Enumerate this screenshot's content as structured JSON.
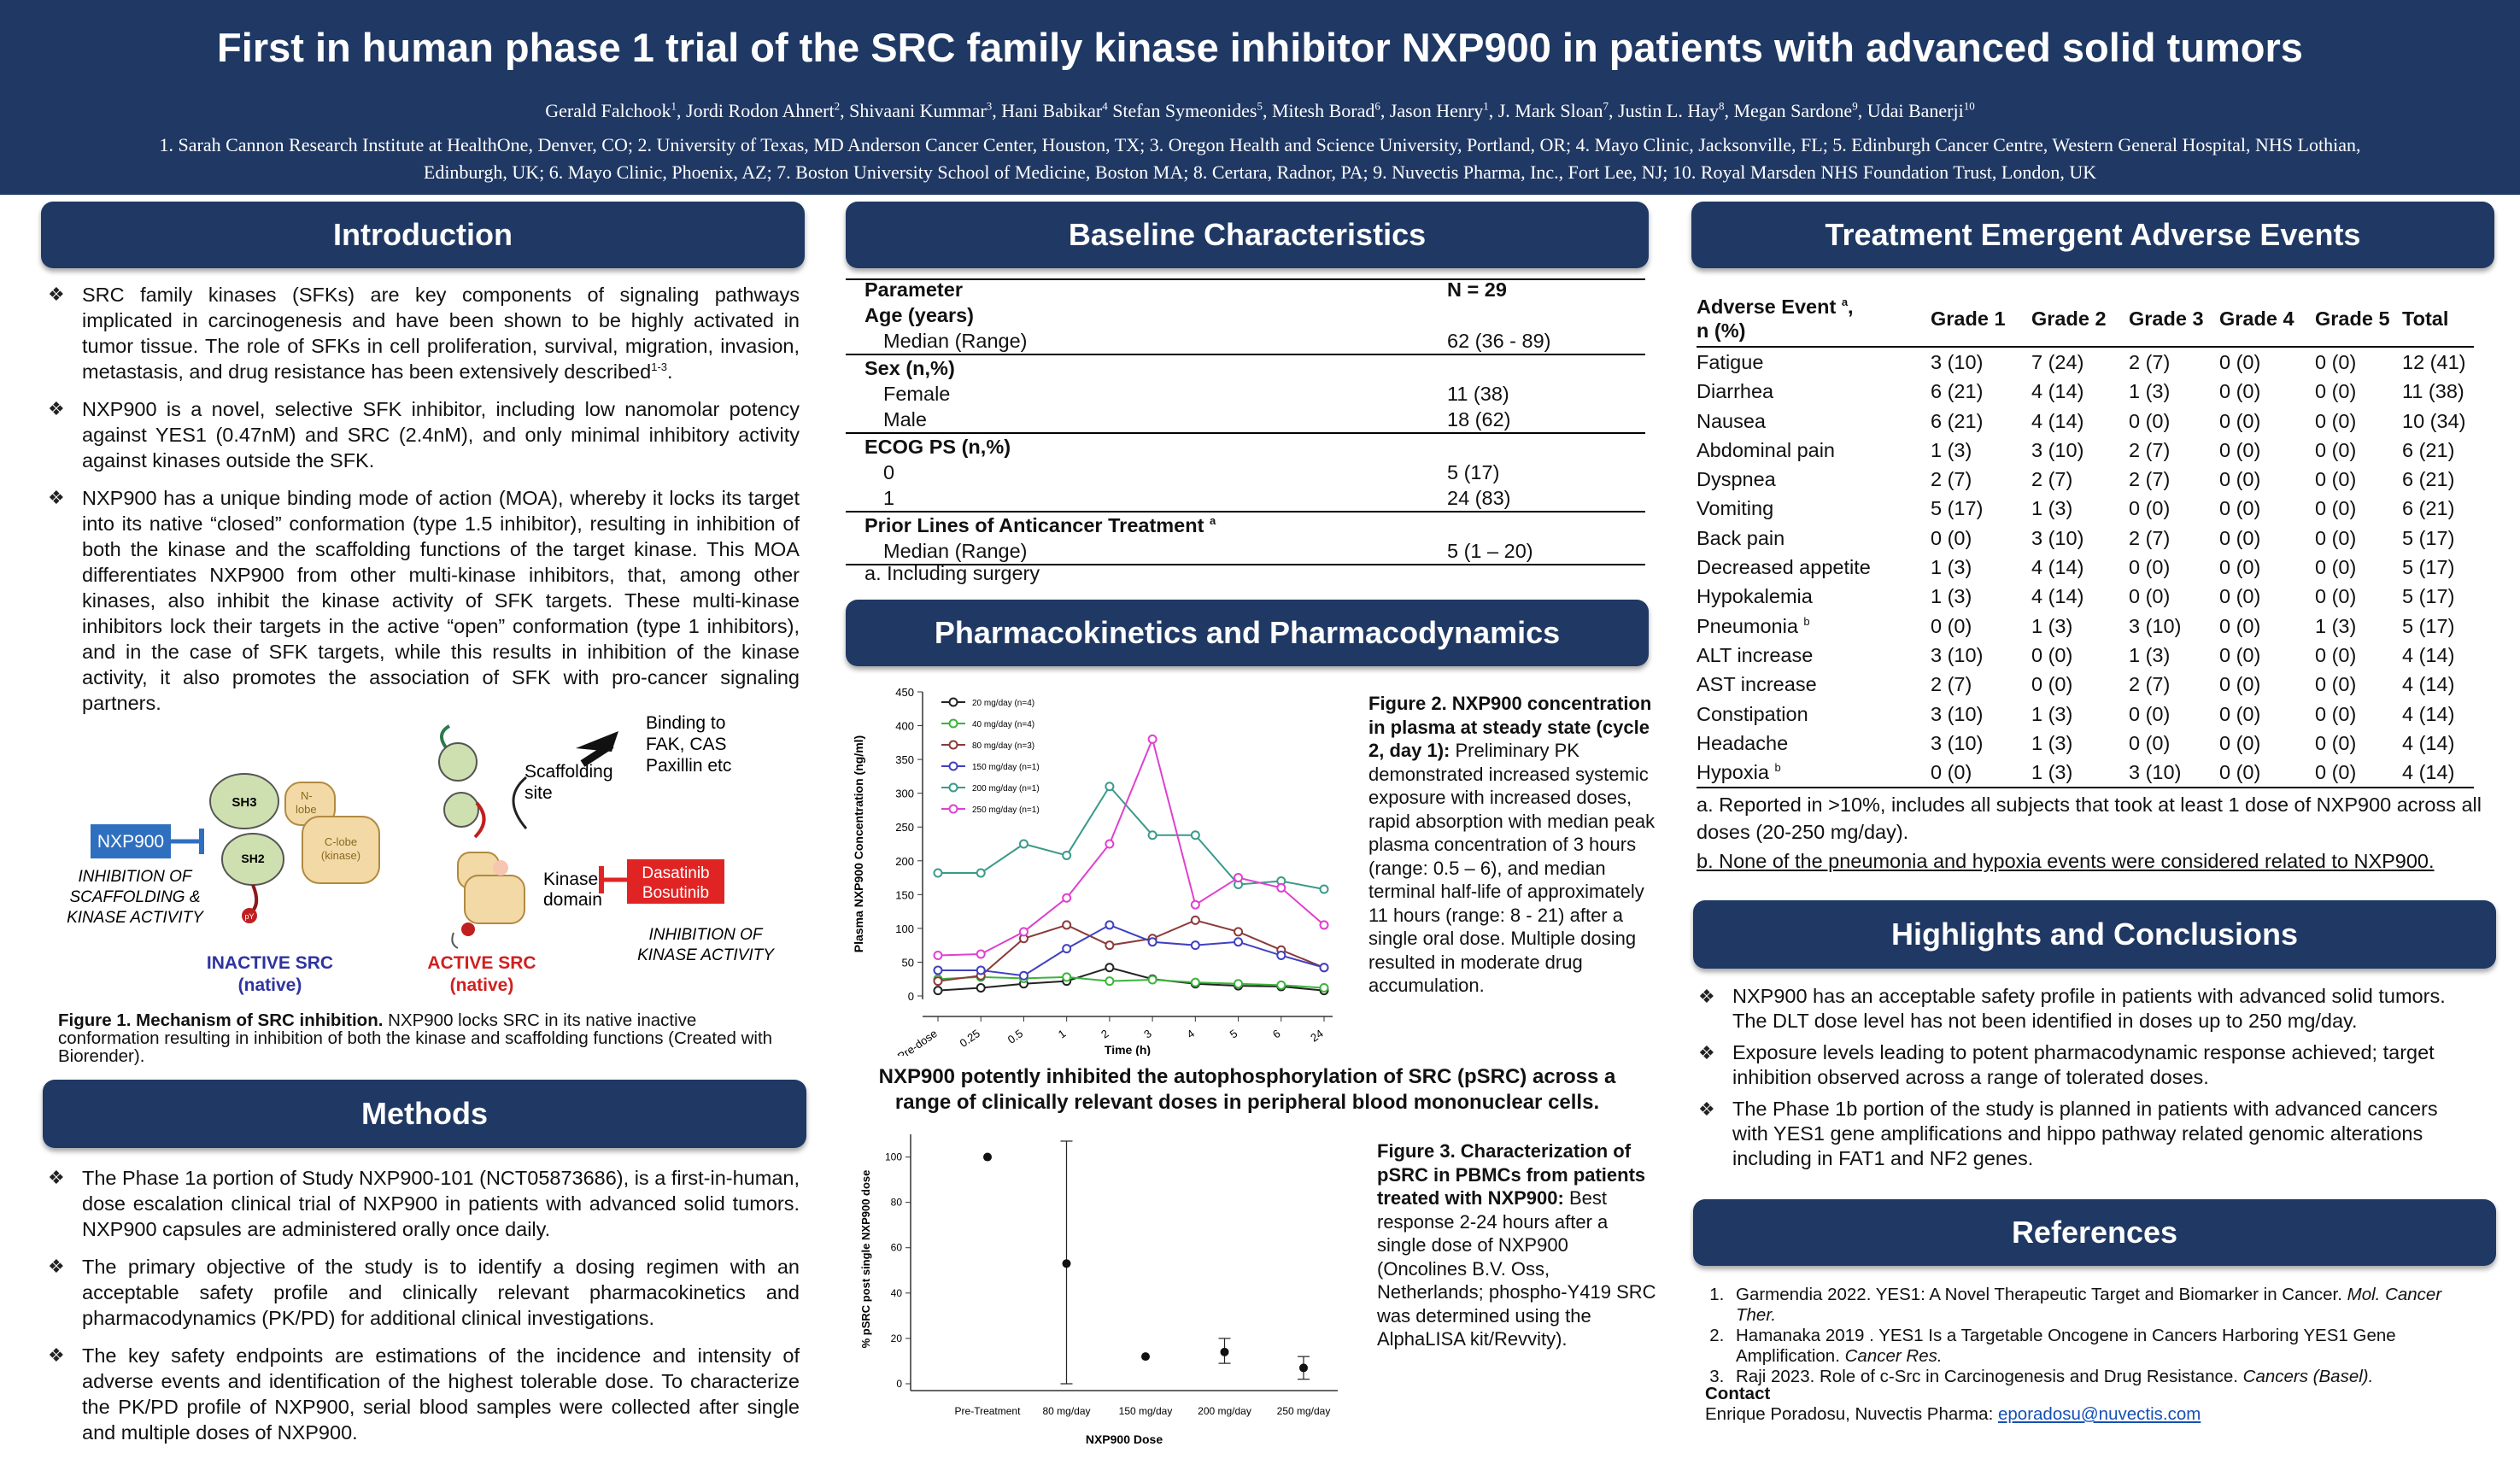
{
  "header": {
    "title": "First in human phase 1 trial of the SRC family kinase inhibitor NXP900 in patients with advanced solid tumors",
    "authors": [
      {
        "name": "Gerald Falchook",
        "sup": "1"
      },
      {
        "name": "Jordi Rodon Ahnert",
        "sup": "2"
      },
      {
        "name": "Shivaani Kummar",
        "sup": "3"
      },
      {
        "name": "Hani Babikar",
        "sup": "4"
      },
      {
        "name": "Stefan Symeonides",
        "sup": "5"
      },
      {
        "name": "Mitesh Borad",
        "sup": "6"
      },
      {
        "name": "Jason Henry",
        "sup": "1"
      },
      {
        "name": "J. Mark Sloan",
        "sup": "7"
      },
      {
        "name": "Justin L. Hay",
        "sup": "8"
      },
      {
        "name": "Megan Sardone",
        "sup": "9"
      },
      {
        "name": "Udai Banerji",
        "sup": "10"
      }
    ],
    "affiliations": "1. Sarah Cannon Research Institute at HealthOne, Denver, CO; 2. University of Texas, MD Anderson Cancer Center, Houston, TX; 3. Oregon Health and Science University, Portland, OR; 4. Mayo Clinic, Jacksonville, FL; 5. Edinburgh Cancer Centre, Western General Hospital, NHS Lothian, Edinburgh, UK; 6. Mayo Clinic, Phoenix, AZ; 7. Boston University School of Medicine, Boston  MA; 8. Certara, Radnor, PA; 9. Nuvectis Pharma, Inc., Fort Lee, NJ; 10. Royal Marsden NHS Foundation Trust, London, UK"
  },
  "intro": {
    "heading": "Introduction",
    "b1": "SRC family kinases (SFKs) are key components of signaling pathways implicated in carcinogenesis and have been shown to be highly activated in tumor tissue. The role of SFKs in cell proliferation, survival, migration, invasion, metastasis, and drug resistance has been extensively described",
    "b1_sup": "1-3",
    "b1_end": ".",
    "b2": "NXP900 is a novel, selective SFK inhibitor, including low nanomolar potency against YES1 (0.47nM) and SRC (2.4nM), and only minimal inhibitory activity against kinases outside the SFK.",
    "b3": "NXP900 has a unique binding mode of action (MOA), whereby it locks its target into its native “closed” conformation (type 1.5 inhibitor), resulting in inhibition of both the kinase and the scaffolding functions of the target kinase. This MOA differentiates NXP900 from other multi-kinase inhibitors, that, among other kinases, also inhibit the kinase activity of SFK targets. These multi-kinase inhibitors lock their targets in the active “open” conformation (type 1 inhibitors), and in the case of SFK targets, while this results in inhibition of the kinase activity, it also promotes the association of SFK with pro-cancer signaling partners."
  },
  "fig1": {
    "drug": "NXP900",
    "inhib_left": "INHIBITION OF SCAFFOLDING & KINASE ACTIVITY",
    "sh3": "SH3",
    "sh2": "SH2",
    "nlobe": "N-lobe",
    "clobe": "C-lobe (kinase)",
    "py": "pY",
    "inactive": "INACTIVE SRC",
    "inactive_sub": "(native)",
    "active": "ACTIVE SRC",
    "active_sub": "(native)",
    "scaffold": "Scaffolding site",
    "binding": "Binding to FAK, CAS Paxillin etc",
    "kinase_domain": "Kinase domain",
    "drugs_right": [
      "Dasatinib",
      "Bosutinib"
    ],
    "inhib_right": "INHIBITION OF KINASE ACTIVITY",
    "caption_bold": "Figure 1. Mechanism of SRC inhibition.",
    "caption": " NXP900 locks SRC in its native inactive conformation resulting in inhibition of  both the kinase and scaffolding functions (Created with Biorender)."
  },
  "methods": {
    "heading": "Methods",
    "b1": "The Phase 1a portion of Study NXP900-101 (NCT05873686), is a first-in-human, dose escalation clinical trial of NXP900 in patients with advanced solid tumors. NXP900 capsules are administered orally once daily.",
    "b2": "The primary objective of the study is to identify a dosing regimen with an acceptable safety profile and clinically relevant pharmacokinetics and pharmacodynamics (PK/PD) for additional clinical investigations.",
    "b3": "The key safety endpoints are estimations of the incidence and intensity of adverse events and identification of the highest tolerable dose. To characterize the PK/PD profile of NXP900, serial blood samples were collected after single and multiple doses of NXP900."
  },
  "baseline": {
    "heading": "Baseline Characteristics",
    "rows": [
      {
        "label": "Parameter",
        "value": "N = 29",
        "type": "hd"
      },
      {
        "label": "Age (years)",
        "value": "",
        "type": "hd"
      },
      {
        "label": "Median (Range)",
        "value": "62 (36 - 89)",
        "type": "ind"
      },
      {
        "label": "Sex (n,%)",
        "value": "",
        "type": "hdsep"
      },
      {
        "label": "Female",
        "value": "11 (38)",
        "type": "ind"
      },
      {
        "label": "Male",
        "value": "18 (62)",
        "type": "ind"
      },
      {
        "label": "ECOG PS  (n,%)",
        "value": "",
        "type": "hdsep"
      },
      {
        "label": "0",
        "value": "5 (17)",
        "type": "ind2"
      },
      {
        "label": "1",
        "value": "24 (83)",
        "type": "ind2"
      },
      {
        "label": "Prior Lines of Anticancer Treatment",
        "value": "",
        "type": "hdsep",
        "sup": "a"
      },
      {
        "label": "Median (Range)",
        "value": "5 (1 – 20)",
        "type": "ind"
      }
    ],
    "footnote": "a. Including surgery"
  },
  "pk": {
    "heading": "Pharmacokinetics and Pharmacodynamics",
    "fig2_bold": "Figure 2. NXP900 concentration in plasma at steady state (cycle 2, day 1):",
    "fig2_text": " Preliminary PK demonstrated increased systemic exposure with increased doses, rapid absorption with median peak plasma concentration of 3 hours (range: 0.5 – 6), and median terminal half-life of approximately 11 hours (range: 8 - 21) after a single oral dose. Multiple dosing resulted in moderate drug accumulation.",
    "pd_statement": "NXP900 potently inhibited the autophosphorylation of SRC (pSRC) across a range of clinically relevant doses in peripheral blood mononuclear cells.",
    "fig3_bold": "Figure 3. Characterization of pSRC in PBMCs from patients treated with NXP900:",
    "fig3_text": " Best response 2-24 hours after a single dose of NXP900 (Oncolines B.V. Oss, Netherlands;  phospho-Y419 SRC was determined using the AlphaLISA kit/Revvity)."
  },
  "chart_data": [
    {
      "type": "line",
      "xlabel": "Time (h)",
      "ylabel": "Plasma NXP900 Concentration (ng/ml)",
      "ylim": [
        0,
        450
      ],
      "yticks": [
        0,
        50,
        100,
        150,
        200,
        250,
        300,
        350,
        400,
        450
      ],
      "categories": [
        "Pre-dose",
        "0.25",
        "0.5",
        "1",
        "2",
        "3",
        "4",
        "5",
        "6",
        "24"
      ],
      "series": [
        {
          "name": "20 mg/day (n=4)",
          "color": "#222222",
          "values": [
            8,
            12,
            18,
            22,
            42,
            25,
            18,
            15,
            14,
            8
          ]
        },
        {
          "name": "40 mg/day (n=4)",
          "color": "#3cb33c",
          "values": [
            25,
            28,
            26,
            28,
            22,
            24,
            20,
            18,
            16,
            12
          ]
        },
        {
          "name": "80 mg/day (n=3)",
          "color": "#8b3a3a",
          "values": [
            22,
            30,
            85,
            105,
            75,
            85,
            112,
            95,
            68,
            42
          ]
        },
        {
          "name": "150 mg/day (n=1)",
          "color": "#4040c0",
          "values": [
            38,
            38,
            30,
            70,
            105,
            80,
            75,
            80,
            60,
            42
          ]
        },
        {
          "name": "200 mg/day (n=1)",
          "color": "#3a9a8a",
          "values": [
            182,
            182,
            225,
            208,
            310,
            238,
            238,
            165,
            170,
            158
          ]
        },
        {
          "name": "250 mg/day (n=1)",
          "color": "#e040d0",
          "values": [
            60,
            62,
            95,
            145,
            225,
            380,
            135,
            175,
            160,
            105
          ]
        }
      ]
    },
    {
      "type": "scatter",
      "xlabel": "NXP900 Dose",
      "ylabel": "% pSRC post single NXP900 dose",
      "ylim": [
        0,
        110
      ],
      "yticks": [
        0,
        20,
        40,
        60,
        80,
        100
      ],
      "categories": [
        "Pre-Treatment",
        "80 mg/day",
        "150 mg/day",
        "200 mg/day",
        "250 mg/day"
      ],
      "values": [
        100,
        53,
        12,
        14,
        7
      ],
      "err_low": [
        100,
        0,
        12,
        9,
        2
      ],
      "err_high": [
        100,
        107,
        12,
        20,
        12
      ]
    }
  ],
  "ae": {
    "heading": "Treatment Emergent Adverse Events",
    "columns": [
      "Adverse Event",
      "Grade 1",
      "Grade 2",
      "Grade 3",
      "Grade 4",
      "Grade 5",
      "Total"
    ],
    "col0_sup": "a",
    "col0_sub": "n (%)",
    "rows": [
      {
        "name": "Fatigue",
        "v": [
          "3 (10)",
          "7 (24)",
          "2 (7)",
          "0 (0)",
          "0 (0)",
          "12 (41)"
        ]
      },
      {
        "name": "Diarrhea",
        "v": [
          "6 (21)",
          "4 (14)",
          "1 (3)",
          "0 (0)",
          "0 (0)",
          "11 (38)"
        ]
      },
      {
        "name": "Nausea",
        "v": [
          "6 (21)",
          "4 (14)",
          "0 (0)",
          "0 (0)",
          "0 (0)",
          "10 (34)"
        ]
      },
      {
        "name": "Abdominal pain",
        "v": [
          "1 (3)",
          "3 (10)",
          "2 (7)",
          "0 (0)",
          "0 (0)",
          "6 (21)"
        ]
      },
      {
        "name": "Dyspnea",
        "v": [
          "2 (7)",
          "2 (7)",
          "2 (7)",
          "0 (0)",
          "0 (0)",
          "6 (21)"
        ]
      },
      {
        "name": "Vomiting",
        "v": [
          "5 (17)",
          "1 (3)",
          "0 (0)",
          "0 (0)",
          "0 (0)",
          "6 (21)"
        ]
      },
      {
        "name": "Back pain",
        "v": [
          "0 (0)",
          "3 (10)",
          "2 (7)",
          "0 (0)",
          "0 (0)",
          "5 (17)"
        ]
      },
      {
        "name": "Decreased appetite",
        "v": [
          "1 (3)",
          "4 (14)",
          "0 (0)",
          "0 (0)",
          "0 (0)",
          "5 (17)"
        ]
      },
      {
        "name": "Hypokalemia",
        "v": [
          "1 (3)",
          "4 (14)",
          "0 (0)",
          "0 (0)",
          "0 (0)",
          "5 (17)"
        ]
      },
      {
        "name": "Pneumonia",
        "sup": "b",
        "v": [
          "0 (0)",
          "1 (3)",
          "3 (10)",
          "0 (0)",
          "1 (3)",
          "5 (17)"
        ]
      },
      {
        "name": "ALT increase",
        "v": [
          "3 (10)",
          "0 (0)",
          "1 (3)",
          "0 (0)",
          "0 (0)",
          "4 (14)"
        ]
      },
      {
        "name": "AST increase",
        "v": [
          "2 (7)",
          "0 (0)",
          "2 (7)",
          "0 (0)",
          "0 (0)",
          "4 (14)"
        ]
      },
      {
        "name": "Constipation",
        "v": [
          "3 (10)",
          "1 (3)",
          "0 (0)",
          "0 (0)",
          "0 (0)",
          "4 (14)"
        ]
      },
      {
        "name": "Headache",
        "v": [
          "3 (10)",
          "1 (3)",
          "0 (0)",
          "0 (0)",
          "0 (0)",
          "4 (14)"
        ]
      },
      {
        "name": "Hypoxia",
        "sup": "b",
        "v": [
          "0 (0)",
          "1 (3)",
          "3 (10)",
          "0 (0)",
          "0 (0)",
          "4 (14)"
        ]
      }
    ],
    "fn_a": "a. Reported in >10%, includes all subjects that took at least 1 dose of NXP900 across all doses (20-250 mg/day).",
    "fn_b": "b. None of the pneumonia and hypoxia events were considered related to NXP900."
  },
  "highlights": {
    "heading": "Highlights and Conclusions",
    "b1": "NXP900 has an acceptable safety profile in patients with advanced solid tumors. The DLT dose level has not been identified in doses up to 250 mg/day.",
    "b2": "Exposure levels leading to potent pharmacodynamic response achieved; target inhibition observed across a range of tolerated doses.",
    "b3": "The Phase 1b portion of the study is planned in patients with advanced cancers with YES1 gene amplifications and hippo pathway related genomic alterations including in  FAT1 and NF2 genes."
  },
  "refs": {
    "heading": "References",
    "items": [
      {
        "text": "Garmendia 2022. YES1: A Novel Therapeutic Target and Biomarker in Cancer. ",
        "journal": "Mol. Cancer Ther."
      },
      {
        "text": "Hamanaka 2019 . YES1 Is a Targetable Oncogene in Cancers Harboring YES1 Gene Amplification. ",
        "journal": "Cancer Res."
      },
      {
        "text": "Raji 2023. Role of c-Src in Carcinogenesis and Drug Resistance. ",
        "journal": "Cancers (Basel)."
      }
    ],
    "contact_label": "Contact",
    "contact_text": "Enrique Poradosu, Nuvectis Pharma: ",
    "contact_email": "eporadosu@nuvectis.com"
  },
  "colors": {
    "navy": "#1f3864",
    "red_box": "#e02424",
    "blue_box": "#2f6fbf"
  }
}
